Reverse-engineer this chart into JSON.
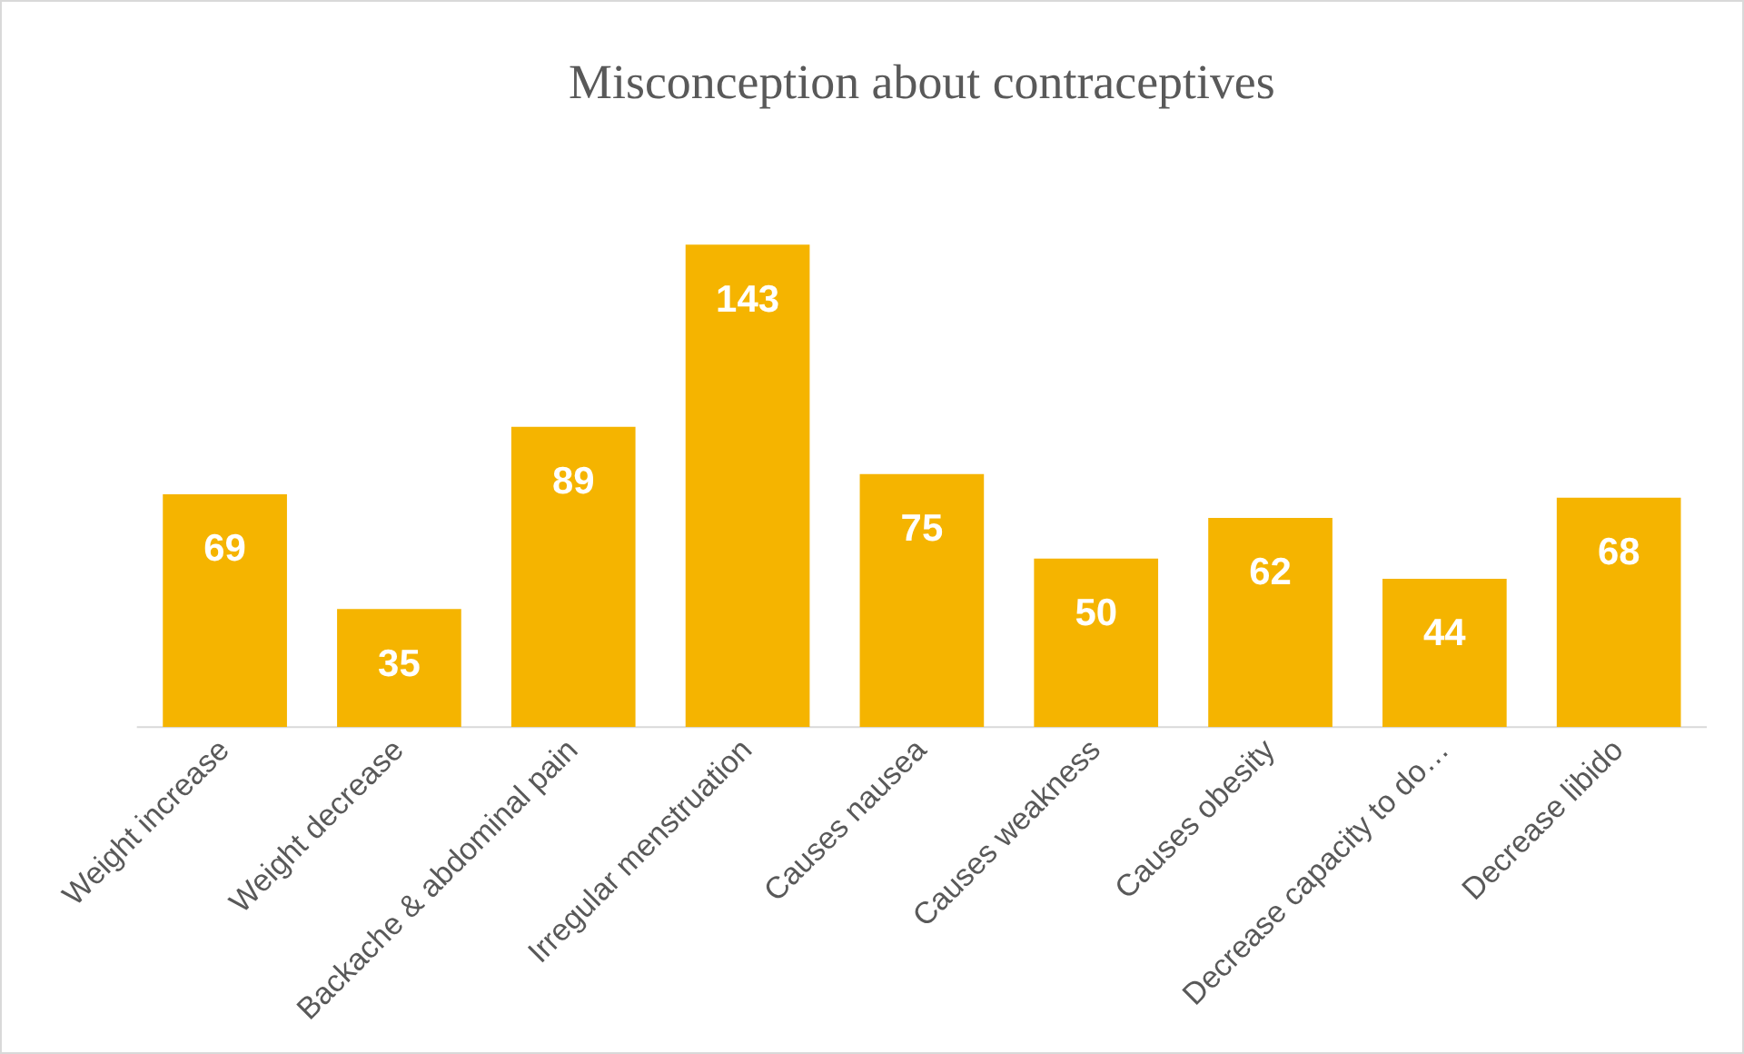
{
  "chart_data": {
    "type": "bar",
    "title": "Misconception about contraceptives",
    "categories": [
      "Weight increase",
      "Weight decrease",
      "Backache & abdominal pain",
      "Irregular menstruation",
      "Causes nausea",
      "Causes weakness",
      "Causes obesity",
      "Decrease capacity to do…",
      "Decrease libido"
    ],
    "values": [
      69,
      35,
      89,
      143,
      75,
      50,
      62,
      44,
      68
    ],
    "color": "#f5b400",
    "data_labels": true,
    "grid": false,
    "legend": false
  }
}
